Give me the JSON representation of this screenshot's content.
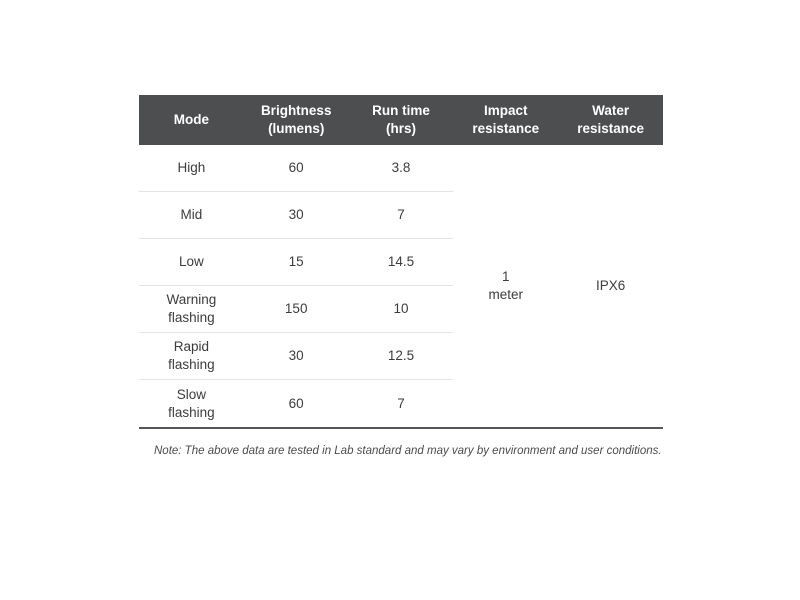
{
  "table": {
    "columns": [
      "Mode",
      "Brightness\n(lumens)",
      "Run time\n(hrs)",
      "Impact\nresistance",
      "Water\nresistance"
    ],
    "rows": [
      {
        "mode": "High",
        "brightness": "60",
        "run_time": "3.8"
      },
      {
        "mode": "Mid",
        "brightness": "30",
        "run_time": "7"
      },
      {
        "mode": "Low",
        "brightness": "15",
        "run_time": "14.5"
      },
      {
        "mode": "Warning\nflashing",
        "brightness": "150",
        "run_time": "10"
      },
      {
        "mode": "Rapid\nflashing",
        "brightness": "30",
        "run_time": "12.5"
      },
      {
        "mode": "Slow\nflashing",
        "brightness": "60",
        "run_time": "7"
      }
    ],
    "impact_resistance": "1\nmeter",
    "water_resistance": "IPX6",
    "colors": {
      "header_bg": "#4d4e50",
      "header_text": "#ffffff",
      "body_text": "#3c3c3c",
      "row_separator": "#e3e3e3",
      "bottom_rule": "#55565a"
    }
  },
  "note": "Note: The above data are tested in Lab standard and may vary by environment and user conditions.",
  "chart_data": {
    "type": "table",
    "columns": [
      "Mode",
      "Brightness (lumens)",
      "Run time (hrs)",
      "Impact resistance",
      "Water resistance"
    ],
    "rows": [
      [
        "High",
        60,
        3.8
      ],
      [
        "Mid",
        30,
        7
      ],
      [
        "Low",
        15,
        14.5
      ],
      [
        "Warning flashing",
        150,
        10
      ],
      [
        "Rapid flashing",
        30,
        12.5
      ],
      [
        "Slow flashing",
        60,
        7
      ]
    ],
    "merged_columns": {
      "Impact resistance": "1 meter",
      "Water resistance": "IPX6"
    },
    "note": "Note: The above data are tested in Lab standard and may vary by environment and user conditions.",
    "layout": {
      "header_style": "dark-bar",
      "row_separators": "light",
      "grid": "horizontal-only"
    }
  }
}
